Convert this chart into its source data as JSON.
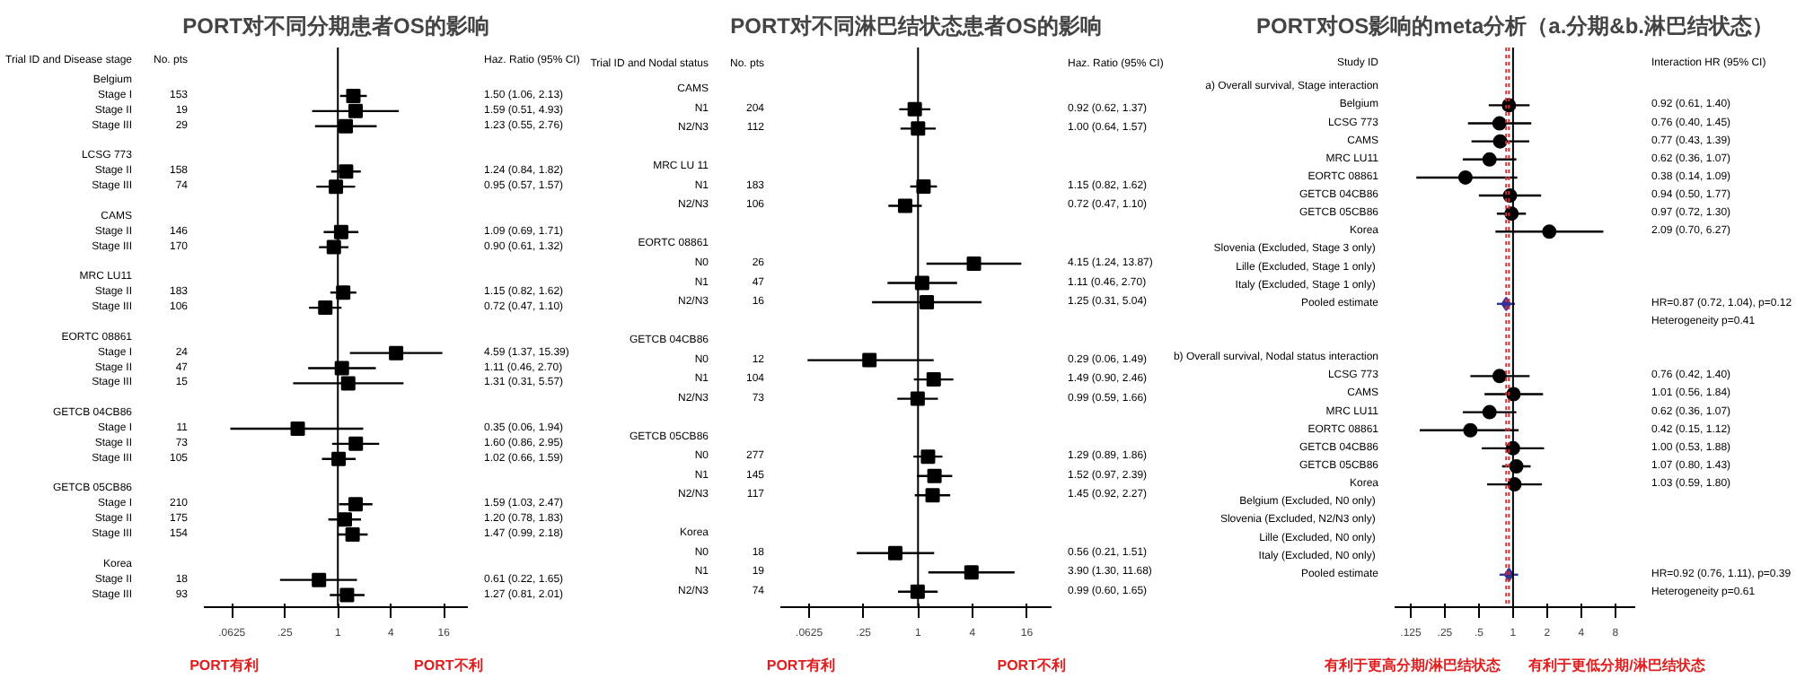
{
  "chart_data": [
    {
      "type": "scatter",
      "orientation": "horizontal",
      "title": "PORT对不同分期患者OS的影响",
      "ylabel": "Trial ID and Disease stage",
      "y2label": "No. pts",
      "annotations": [
        "Haz. Ratio (95% CI)",
        "PORT有利",
        "PORT不利"
      ],
      "categories": [
        "Belgium",
        "Stage I",
        "Stage II",
        "Stage III",
        null,
        "LCSG 773",
        "Stage II",
        "Stage III",
        null,
        "CAMS",
        "Stage II",
        "Stage III",
        null,
        "MRC LU11",
        "Stage II",
        "Stage III",
        null,
        "EORTC 08861",
        "Stage I",
        "Stage II",
        "Stage III",
        null,
        "GETCB 04CB86",
        "Stage I",
        "Stage II",
        "Stage III",
        null,
        "GETCB 05CB86",
        "Stage I",
        "Stage II",
        "Stage III",
        null,
        "Korea",
        "Stage II",
        "Stage III"
      ],
      "y2_categories": [
        null,
        "153",
        "19",
        "29",
        null,
        null,
        "158",
        "74",
        null,
        null,
        "146",
        "170",
        null,
        null,
        "183",
        "106",
        null,
        null,
        "24",
        "47",
        "15",
        null,
        null,
        "11",
        "73",
        "105",
        null,
        null,
        "210",
        "175",
        "154",
        null,
        null,
        "18",
        "93"
      ],
      "series": [
        {
          "color": "#000000",
          "marker": "square",
          "values": [
            null,
            1.5,
            1.59,
            1.23,
            null,
            null,
            1.24,
            0.95,
            null,
            null,
            1.09,
            0.9,
            null,
            null,
            1.15,
            0.72,
            null,
            null,
            4.59,
            1.11,
            1.31,
            null,
            null,
            0.35,
            1.6,
            1.02,
            null,
            null,
            1.59,
            1.2,
            1.47,
            null,
            null,
            0.61,
            1.27
          ],
          "errors": [
            null,
            [
              1.06,
              2.13
            ],
            [
              0.51,
              4.93
            ],
            [
              0.55,
              2.76
            ],
            null,
            null,
            [
              0.84,
              1.82
            ],
            [
              0.57,
              1.57
            ],
            null,
            null,
            [
              0.69,
              1.71
            ],
            [
              0.61,
              1.32
            ],
            null,
            null,
            [
              0.82,
              1.62
            ],
            [
              0.47,
              1.1
            ],
            null,
            null,
            [
              1.37,
              15.39
            ],
            [
              0.46,
              2.7
            ],
            [
              0.31,
              5.57
            ],
            null,
            null,
            [
              0.06,
              1.94
            ],
            [
              0.86,
              2.95
            ],
            [
              0.66,
              1.59
            ],
            null,
            null,
            [
              1.03,
              2.47
            ],
            [
              0.78,
              1.83
            ],
            [
              0.99,
              2.18
            ],
            null,
            null,
            [
              0.22,
              1.65
            ],
            [
              0.81,
              2.01
            ]
          ]
        }
      ],
      "value_labels": [
        null,
        "1.50 (1.06, 2.13)",
        "1.59 (0.51, 4.93)",
        "1.23 (0.55, 2.76)",
        null,
        null,
        "1.24 (0.84, 1.82)",
        "0.95 (0.57, 1.57)",
        null,
        null,
        "1.09 (0.69, 1.71)",
        "0.90 (0.61, 1.32)",
        null,
        null,
        "1.15 (0.82, 1.62)",
        "0.72 (0.47, 1.10)",
        null,
        null,
        "4.59 (1.37, 15.39)",
        "1.11 (0.46, 2.70)",
        "1.31 (0.31, 5.57)",
        null,
        null,
        "0.35 (0.06, 1.94)",
        "1.60 (0.86, 2.95)",
        "1.02 (0.66, 1.59)",
        null,
        null,
        "1.59 (1.03, 2.47)",
        "1.20 (0.78, 1.83)",
        "1.47 (0.99, 2.18)",
        null,
        null,
        "0.61 (0.22, 1.65)",
        "1.27 (0.81, 2.01)"
      ],
      "log": "x",
      "xlim": [
        0.03,
        30
      ],
      "xticks": [
        {
          "value": 0.0625,
          "label": ".0625"
        },
        {
          "value": 0.25,
          "label": ".25"
        },
        1,
        4,
        16
      ],
      "grid": false,
      "ref_lines": [
        {
          "axis": "x",
          "value": 1,
          "color": "#000000",
          "line_style": "solid"
        }
      ]
    },
    {
      "type": "scatter",
      "orientation": "horizontal",
      "title": "PORT对不同淋巴结状态患者OS的影响",
      "ylabel": "Trial ID and Nodal status",
      "y2label": "No. pts",
      "annotations": [
        "Haz. Ratio (95% CI)",
        "PORT有利",
        "PORT不利"
      ],
      "categories": [
        "CAMS",
        "N1",
        "N2/N3",
        null,
        "MRC LU 11",
        "N1",
        "N2/N3",
        null,
        "EORTC 08861",
        "N0",
        "N1",
        "N2/N3",
        null,
        "GETCB 04CB86",
        "N0",
        "N1",
        "N2/N3",
        null,
        "GETCB 05CB86",
        "N0",
        "N1",
        "N2/N3",
        null,
        "Korea",
        "N0",
        "N1",
        "N2/N3"
      ],
      "y2_categories": [
        null,
        "204",
        "112",
        null,
        null,
        "183",
        "106",
        null,
        null,
        "26",
        "47",
        "16",
        null,
        null,
        "12",
        "104",
        "73",
        null,
        null,
        "277",
        "145",
        "117",
        null,
        null,
        "18",
        "19",
        "74"
      ],
      "series": [
        {
          "color": "#000000",
          "marker": "square",
          "values": [
            null,
            0.92,
            1.0,
            null,
            null,
            1.15,
            0.72,
            null,
            null,
            4.15,
            1.11,
            1.25,
            null,
            null,
            0.29,
            1.49,
            0.99,
            null,
            null,
            1.29,
            1.52,
            1.45,
            null,
            null,
            0.56,
            3.9,
            0.99
          ],
          "errors": [
            null,
            [
              0.62,
              1.37
            ],
            [
              0.64,
              1.57
            ],
            null,
            null,
            [
              0.82,
              1.62
            ],
            [
              0.47,
              1.1
            ],
            null,
            null,
            [
              1.24,
              13.87
            ],
            [
              0.46,
              2.7
            ],
            [
              0.31,
              5.04
            ],
            null,
            null,
            [
              0.06,
              1.49
            ],
            [
              0.9,
              2.46
            ],
            [
              0.59,
              1.66
            ],
            null,
            null,
            [
              0.89,
              1.86
            ],
            [
              0.97,
              2.39
            ],
            [
              0.92,
              2.27
            ],
            null,
            null,
            [
              0.21,
              1.51
            ],
            [
              1.3,
              11.68
            ],
            [
              0.6,
              1.65
            ]
          ]
        }
      ],
      "value_labels": [
        null,
        "0.92 (0.62, 1.37)",
        "1.00 (0.64, 1.57)",
        null,
        null,
        "1.15 (0.82, 1.62)",
        "0.72 (0.47, 1.10)",
        null,
        null,
        "4.15 (1.24, 13.87)",
        "1.11 (0.46, 2.70)",
        "1.25 (0.31, 5.04)",
        null,
        null,
        "0.29 (0.06, 1.49)",
        "1.49 (0.90, 2.46)",
        "0.99 (0.59, 1.66)",
        null,
        null,
        "1.29 (0.89, 1.86)",
        "1.52 (0.97, 2.39)",
        "1.45 (0.92, 2.27)",
        null,
        null,
        "0.56 (0.21, 1.51)",
        "3.90 (1.30, 11.68)",
        "0.99 (0.60, 1.65)"
      ],
      "log": "x",
      "xlim": [
        0.03,
        30
      ],
      "xticks": [
        {
          "value": 0.0625,
          "label": ".0625"
        },
        {
          "value": 0.25,
          "label": ".25"
        },
        1,
        4,
        16
      ],
      "grid": false,
      "ref_lines": [
        {
          "axis": "x",
          "value": 1,
          "color": "#000000",
          "line_style": "solid"
        }
      ]
    },
    {
      "type": "scatter",
      "orientation": "horizontal",
      "title": "PORT对OS影响的meta分析（a.分期&b.淋巴结状态）",
      "ylabel": "Study ID",
      "annotations": [
        "Interaction HR (95% CI)",
        "有利于更高分期/淋巴结状态",
        "有利于更低分期/淋巴结状态"
      ],
      "categories": [
        "a) Overall survival, Stage interaction",
        "Belgium",
        "LCSG 773",
        "CAMS",
        "MRC LU11",
        "EORTC 08861",
        "GETCB 04CB86",
        "GETCB 05CB86",
        "Korea",
        "Slovenia  (Excluded, Stage 3 only)",
        "Lille  (Excluded, Stage 1 only)",
        "Italy  (Excluded, Stage 1 only)",
        "Pooled estimate",
        null,
        null,
        "b) Overall survival, Nodal status interaction",
        "LCSG 773",
        "CAMS",
        "MRC LU11",
        "EORTC 08861",
        "GETCB 04CB86",
        "GETCB 05CB86",
        "Korea",
        "Belgium  (Excluded, N0 only)",
        "Slovenia  (Excluded, N2/N3 only)",
        "Lille  (Excluded, N0 only)",
        "Italy  (Excluded, N0 only)",
        "Pooled estimate",
        null
      ],
      "series": [
        {
          "color": "#000000",
          "marker": "circle",
          "values": [
            null,
            0.92,
            0.76,
            0.77,
            0.62,
            0.38,
            0.94,
            0.97,
            2.09,
            null,
            null,
            null,
            null,
            null,
            null,
            null,
            0.76,
            1.01,
            0.62,
            0.42,
            1.0,
            1.07,
            1.03,
            null,
            null,
            null,
            null,
            null,
            null
          ],
          "errors": [
            null,
            [
              0.61,
              1.4
            ],
            [
              0.4,
              1.45
            ],
            [
              0.43,
              1.39
            ],
            [
              0.36,
              1.07
            ],
            [
              0.14,
              1.09
            ],
            [
              0.5,
              1.77
            ],
            [
              0.72,
              1.3
            ],
            [
              0.7,
              6.27
            ],
            null,
            null,
            null,
            null,
            null,
            null,
            null,
            [
              0.42,
              1.4
            ],
            [
              0.56,
              1.84
            ],
            [
              0.36,
              1.07
            ],
            [
              0.15,
              1.12
            ],
            [
              0.53,
              1.88
            ],
            [
              0.8,
              1.43
            ],
            [
              0.59,
              1.8
            ],
            null,
            null,
            null,
            null,
            null,
            null
          ]
        },
        {
          "color": "#333399",
          "marker": "diamond",
          "values": [
            null,
            null,
            null,
            null,
            null,
            null,
            null,
            null,
            null,
            null,
            null,
            null,
            0.87,
            null,
            null,
            null,
            null,
            null,
            null,
            null,
            null,
            null,
            null,
            null,
            null,
            null,
            null,
            0.92,
            null
          ],
          "errors": [
            null,
            null,
            null,
            null,
            null,
            null,
            null,
            null,
            null,
            null,
            null,
            null,
            [
              0.72,
              1.04
            ],
            null,
            null,
            null,
            null,
            null,
            null,
            null,
            null,
            null,
            null,
            null,
            null,
            null,
            null,
            [
              0.76,
              1.11
            ],
            null
          ]
        }
      ],
      "value_labels": [
        null,
        "0.92 (0.61, 1.40)",
        "0.76 (0.40, 1.45)",
        "0.77 (0.43, 1.39)",
        "0.62 (0.36, 1.07)",
        "0.38 (0.14, 1.09)",
        "0.94 (0.50, 1.77)",
        "0.97 (0.72, 1.30)",
        "2.09 (0.70, 6.27)",
        null,
        null,
        null,
        "HR=0.87 (0.72, 1.04), p=0.12",
        "Heterogeneity p=0.41",
        null,
        null,
        "0.76 (0.42, 1.40)",
        "1.01 (0.56, 1.84)",
        "0.62 (0.36, 1.07)",
        "0.42 (0.15, 1.12)",
        "1.00 (0.53, 1.88)",
        "1.07 (0.80, 1.43)",
        "1.03 (0.59, 1.80)",
        null,
        null,
        null,
        null,
        "HR=0.92 (0.76, 1.11), p=0.39",
        "Heterogeneity p=0.61"
      ],
      "log": "x",
      "xlim": [
        0.09,
        12
      ],
      "xticks": [
        {
          "value": 0.125,
          "label": ".125"
        },
        {
          "value": 0.25,
          "label": ".25"
        },
        {
          "value": 0.5,
          "label": ".5"
        },
        1,
        2,
        4,
        8
      ],
      "grid": false,
      "ref_lines": [
        {
          "axis": "x",
          "value": 1,
          "color": "#000000",
          "line_style": "solid"
        },
        {
          "axis": "x",
          "value": 0.87,
          "color": "#cc3333",
          "line_style": "dotted"
        },
        {
          "axis": "x",
          "value": 0.92,
          "color": "#cc3333",
          "line_style": "dotted"
        }
      ]
    }
  ]
}
